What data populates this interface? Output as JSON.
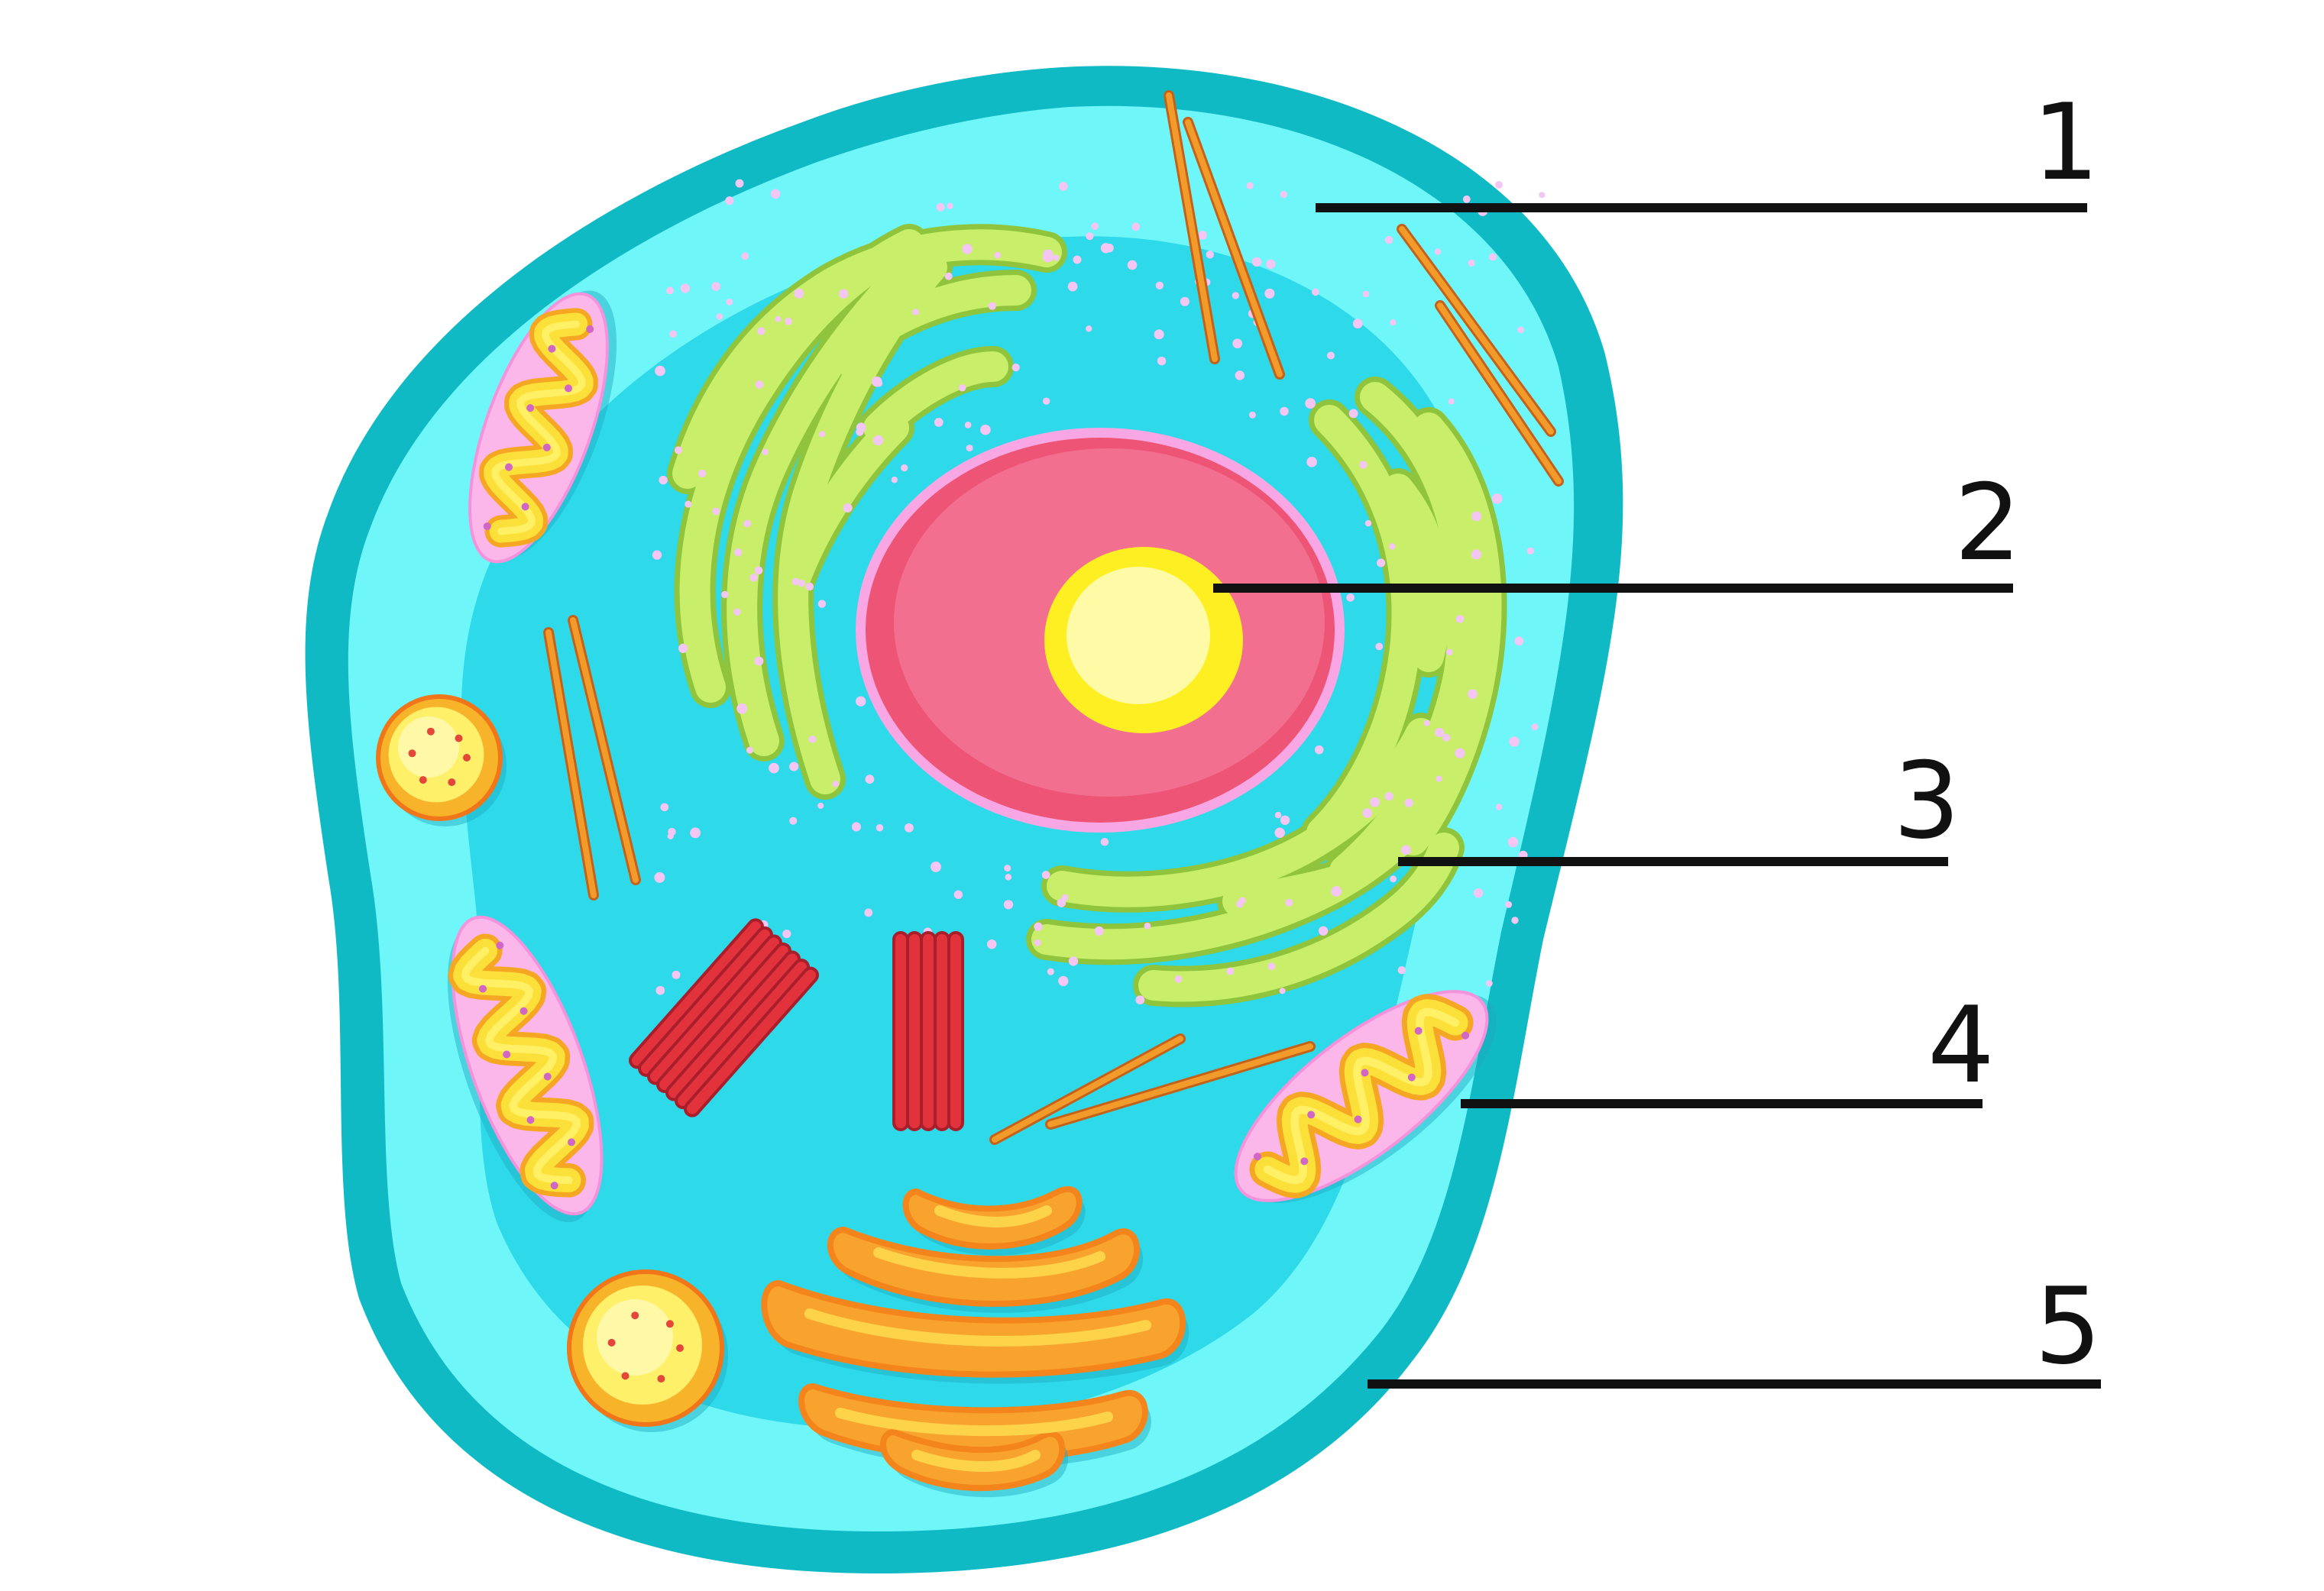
{
  "colors": {
    "membrane": "#10bac4",
    "cytoplasm_outer": "#6ef6f8",
    "cytoplasm_inner": "#2ed9e9",
    "er": "#c8ee6a",
    "er_outline": "#8fc43c",
    "nucleus": "#f26f90",
    "nucleus_rim": "#ee5475",
    "nuclear_envelope": "#f9a7e4",
    "nucleolus": "#fdef22",
    "nucleolus_core": "#fffaa6",
    "mitochondria_outer": "#fbb6ea",
    "mitochondria_inner": "#fbe039",
    "vesicle": "#f7b42a",
    "golgi": "#f9a32f",
    "golgi_outline": "#f4851c",
    "centriole": "#e2333c",
    "microtubule": "#f29a2a",
    "label_line": "#111111"
  },
  "labels": [
    {
      "number": "1"
    },
    {
      "number": "2"
    },
    {
      "number": "3"
    },
    {
      "number": "4"
    },
    {
      "number": "5"
    }
  ]
}
